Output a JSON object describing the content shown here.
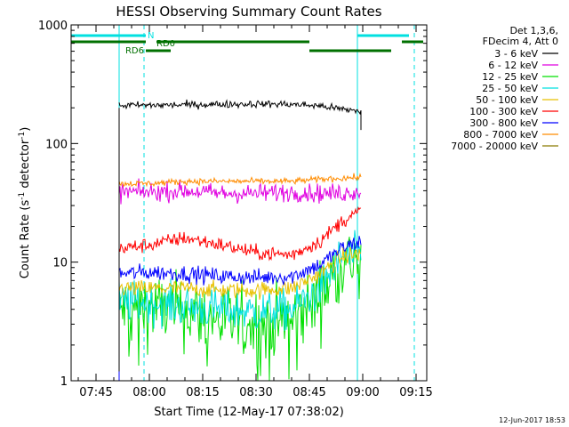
{
  "chart_data": {
    "type": "line",
    "title": "HESSI Observing Summary Count Rates",
    "xlabel": "Start Time (12-May-17 07:38:02)",
    "ylabel_main": "Count Rate (s",
    "ylabel_sup1": "-1",
    "ylabel_mid": " detector",
    "ylabel_sup2": "-1",
    "ylabel_end": ")",
    "y_scale": "log",
    "ylim": [
      1,
      1000
    ],
    "xlim": [
      "07:38:02",
      "09:18:00"
    ],
    "x_tick_labels": [
      "07:45",
      "08:00",
      "08:15",
      "08:30",
      "08:45",
      "09:00",
      "09:15"
    ],
    "x_tick_minutes": [
      7,
      22,
      37,
      52,
      67,
      82,
      97
    ],
    "y_tick_labels": [
      "1",
      "10",
      "100",
      "1000"
    ],
    "y_tick_values": [
      1,
      10,
      100,
      1000
    ],
    "legend_header": [
      "Det 1,3,6,",
      "FDecim 4, Att 0"
    ],
    "series": [
      {
        "name": "3 - 6 keV",
        "color": "#000000",
        "level": [
          210,
          210,
          212,
          214,
          216,
          214,
          208,
          195,
          188
        ],
        "noise": 0.035
      },
      {
        "name": "6 - 12 keV",
        "color": "#e000e0",
        "level": [
          39,
          39,
          40,
          38,
          38,
          39,
          38,
          38,
          40
        ],
        "noise": 0.09
      },
      {
        "name": "12 - 25 keV",
        "color": "#00e000",
        "level": [
          4,
          4.2,
          3.8,
          3.2,
          3.0,
          3.2,
          5.0,
          10,
          11
        ],
        "noise": 0.35
      },
      {
        "name": "25 - 50 keV",
        "color": "#00e0e0",
        "level": [
          4.6,
          4.6,
          4.2,
          4.0,
          3.8,
          4.0,
          6.0,
          11,
          11.5
        ],
        "noise": 0.2
      },
      {
        "name": "50 - 100 keV",
        "color": "#e8c000",
        "level": [
          6,
          6,
          6,
          5.8,
          5.8,
          6,
          8,
          11,
          12
        ],
        "noise": 0.08
      },
      {
        "name": "100 - 300 keV",
        "color": "#ff0000",
        "level": [
          13,
          14,
          16,
          14,
          12,
          11.5,
          15,
          22,
          27
        ],
        "noise": 0.07
      },
      {
        "name": "300 - 800 keV",
        "color": "#0000ff",
        "level": [
          8,
          8.2,
          8.0,
          7.6,
          7.4,
          7.6,
          9.5,
          13,
          15
        ],
        "noise": 0.08
      },
      {
        "name": "800 - 7000 keV",
        "color": "#ff8c00",
        "level": [
          46,
          46,
          48,
          48,
          48,
          48,
          50,
          51,
          52
        ],
        "noise": 0.03
      },
      {
        "name": "7000 - 20000 keV",
        "color": "#8a7a00",
        "level": [],
        "noise": 0
      }
    ],
    "data_start_minute": 13.5,
    "data_end_minute": 81.5,
    "level_minutes": [
      13.5,
      22,
      32,
      42,
      52,
      62,
      70,
      76,
      81.5
    ],
    "drop_minute": 81.5,
    "vertical_lines": [
      {
        "minute": 13.5,
        "style": "solid",
        "color": "#00e0e0"
      },
      {
        "minute": 80.5,
        "style": "solid",
        "color": "#00e0e0"
      },
      {
        "minute": 20.5,
        "style": "dashed",
        "color": "#00e0e0"
      },
      {
        "minute": 96.5,
        "style": "dashed",
        "color": "#00e0e0"
      }
    ],
    "flag_bars": [
      {
        "label": "N",
        "color": "#00e0e0",
        "row": 0,
        "segments": [
          [
            0,
            21
          ],
          [
            80.5,
            95
          ]
        ]
      },
      {
        "label": "RD0",
        "color": "#007000",
        "row": 1,
        "segments": [
          [
            0,
            21
          ],
          [
            24,
            67
          ],
          [
            93,
            99
          ]
        ]
      },
      {
        "label": "RD6",
        "color": "#007000",
        "row": 2,
        "segments": [
          [
            21,
            28
          ],
          [
            67,
            90
          ]
        ]
      }
    ],
    "grid": false,
    "legend_position": "right"
  },
  "footer": {
    "date": "12-Jun-2017 18:53"
  }
}
